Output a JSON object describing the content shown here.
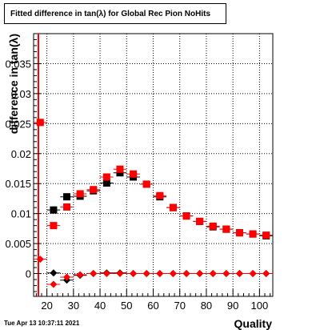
{
  "chart_data": {
    "type": "scatter",
    "title": "Fitted difference in tan(λ) for Global Rec Pion NoHits",
    "xlabel": "Quality",
    "ylabel": "difference in tan(λ)",
    "xlim": [
      15,
      105
    ],
    "ylim": [
      -0.0038,
      0.04
    ],
    "xticks": [
      20,
      30,
      40,
      50,
      60,
      70,
      80,
      90,
      100
    ],
    "yticks": [
      0,
      0.005,
      0.01,
      0.015,
      0.02,
      0.025,
      0.03,
      0.035
    ],
    "ytick_labels": [
      "0",
      "0.005",
      "0.01",
      "0.015",
      "0.02",
      "0.025",
      "0.03",
      "0.035"
    ],
    "grid": true,
    "cut_line_x": 16.8,
    "series": [
      {
        "marker": "square",
        "color": "#000000",
        "points": [
          {
            "x": 22.5,
            "y": 0.0106
          },
          {
            "x": 27.5,
            "y": 0.0128
          },
          {
            "x": 32.5,
            "y": 0.0129
          },
          {
            "x": 37.5,
            "y": 0.0138
          },
          {
            "x": 42.5,
            "y": 0.0151
          },
          {
            "x": 47.5,
            "y": 0.0168
          },
          {
            "x": 52.5,
            "y": 0.0161
          },
          {
            "x": 57.5,
            "y": 0.0149
          },
          {
            "x": 62.5,
            "y": 0.0128
          },
          {
            "x": 67.5,
            "y": 0.011
          },
          {
            "x": 72.5,
            "y": 0.0096
          },
          {
            "x": 77.5,
            "y": 0.0087
          },
          {
            "x": 82.5,
            "y": 0.0078
          },
          {
            "x": 87.5,
            "y": 0.0074
          },
          {
            "x": 92.5,
            "y": 0.0068
          },
          {
            "x": 97.5,
            "y": 0.0066
          },
          {
            "x": 102.5,
            "y": 0.0063
          }
        ]
      },
      {
        "marker": "square",
        "color": "#ff0000",
        "points": [
          {
            "x": 17.5,
            "y": 0.0252
          },
          {
            "x": 22.5,
            "y": 0.008
          },
          {
            "x": 27.5,
            "y": 0.0111
          },
          {
            "x": 32.5,
            "y": 0.0133
          },
          {
            "x": 37.5,
            "y": 0.014
          },
          {
            "x": 42.5,
            "y": 0.0161
          },
          {
            "x": 47.5,
            "y": 0.0174
          },
          {
            "x": 52.5,
            "y": 0.0166
          },
          {
            "x": 57.5,
            "y": 0.0149
          },
          {
            "x": 62.5,
            "y": 0.013
          },
          {
            "x": 67.5,
            "y": 0.011
          },
          {
            "x": 72.5,
            "y": 0.0096
          },
          {
            "x": 77.5,
            "y": 0.0087
          },
          {
            "x": 82.5,
            "y": 0.0079
          },
          {
            "x": 87.5,
            "y": 0.0074
          },
          {
            "x": 92.5,
            "y": 0.0068
          },
          {
            "x": 97.5,
            "y": 0.0066
          },
          {
            "x": 102.5,
            "y": 0.0064
          }
        ]
      },
      {
        "marker": "diamond",
        "color": "#000000",
        "points": [
          {
            "x": 22.5,
            "y": 0.0001
          },
          {
            "x": 27.5,
            "y": -0.0011
          },
          {
            "x": 32.5,
            "y": -0.0003
          },
          {
            "x": 37.5,
            "y": 0.0
          },
          {
            "x": 42.5,
            "y": 0.0001
          },
          {
            "x": 47.5,
            "y": 0.0001
          },
          {
            "x": 52.5,
            "y": 0.0
          },
          {
            "x": 57.5,
            "y": 0.0
          },
          {
            "x": 62.5,
            "y": 0.0
          },
          {
            "x": 67.5,
            "y": 0.0
          },
          {
            "x": 72.5,
            "y": 0.0
          },
          {
            "x": 77.5,
            "y": 0.0
          },
          {
            "x": 82.5,
            "y": 0.0
          },
          {
            "x": 87.5,
            "y": 0.0
          },
          {
            "x": 92.5,
            "y": 0.0
          },
          {
            "x": 97.5,
            "y": 0.0
          },
          {
            "x": 102.5,
            "y": 0.0
          }
        ]
      },
      {
        "marker": "diamond",
        "color": "#ff0000",
        "points": [
          {
            "x": 17.5,
            "y": 0.0024
          },
          {
            "x": 22.5,
            "y": -0.0018
          },
          {
            "x": 27.5,
            "y": -0.0006
          },
          {
            "x": 32.5,
            "y": -0.0002
          },
          {
            "x": 37.5,
            "y": 0.0
          },
          {
            "x": 42.5,
            "y": 0.0
          },
          {
            "x": 47.5,
            "y": 0.0
          },
          {
            "x": 52.5,
            "y": 0.0
          },
          {
            "x": 57.5,
            "y": 0.0
          },
          {
            "x": 62.5,
            "y": 0.0
          },
          {
            "x": 67.5,
            "y": 0.0
          },
          {
            "x": 72.5,
            "y": 0.0
          },
          {
            "x": 77.5,
            "y": 0.0
          },
          {
            "x": 82.5,
            "y": 0.0
          },
          {
            "x": 87.5,
            "y": 0.0
          },
          {
            "x": 92.5,
            "y": 0.0
          },
          {
            "x": 97.5,
            "y": 0.0
          },
          {
            "x": 102.5,
            "y": 0.0
          }
        ]
      }
    ]
  },
  "timestamp": "Tue Apr 13 10:37:11 2021"
}
